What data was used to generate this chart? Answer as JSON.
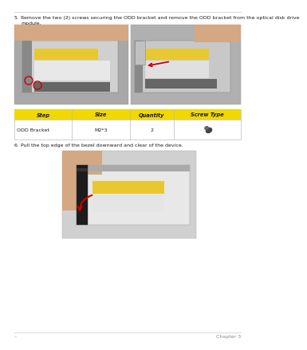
{
  "page_bg": "#ffffff",
  "line_color": "#cccccc",
  "step5_label": "5.",
  "step5_text": "Remove the two (2) screws securing the ODD bracket and remove the ODD bracket from the optical disk drive\nmodule.",
  "step6_label": "6.",
  "step6_text": "Pull the top edge of the bezel downward and clear of the device.",
  "table_header_bg": "#f0d800",
  "table_border_color": "#bbbbbb",
  "table_headers": [
    "Step",
    "Size",
    "Quantity",
    "Screw Type"
  ],
  "table_row": [
    "ODD Bracket",
    "M2*3",
    "2",
    ""
  ],
  "text_color": "#1a1a1a",
  "header_font_size": 4.8,
  "body_font_size": 4.5,
  "footer_left": "–",
  "footer_right": "Chapter 3",
  "footer_color": "#888888",
  "footer_font_size": 4.5,
  "img1_bg": "#a8a8a8",
  "img1_drive_bg": "#d0d0d0",
  "img1_drive_dark": "#888888",
  "img1_yellow": "#e8c830",
  "img2_bg": "#b0b0b0",
  "img2_drive_bg": "#c8c8c8",
  "img2_yellow": "#e8c830",
  "img3_bg": "#c8c8c8",
  "img3_drive_bg": "#e8e8e8",
  "img3_yellow": "#e8c830",
  "red": "#cc0000",
  "screw_color": "#444444"
}
